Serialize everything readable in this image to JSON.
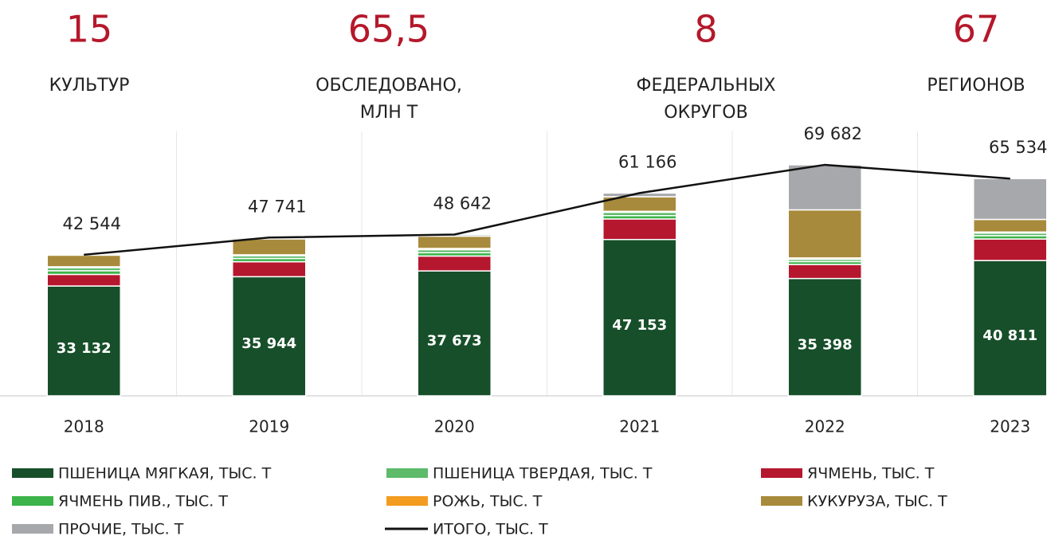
{
  "header": {
    "stats": [
      {
        "value": "15",
        "label": "КУЛЬТУР"
      },
      {
        "value": "65,5",
        "label": "ОБСЛЕДОВАНО, МЛН Т"
      },
      {
        "value": "8",
        "label": "ФЕДЕРАЛЬНЫХ ОКРУГОВ"
      },
      {
        "value": "67",
        "label": "РЕГИОНОВ"
      }
    ]
  },
  "chart_data": {
    "type": "bar",
    "stacked": true,
    "categories": [
      "2018",
      "2019",
      "2020",
      "2021",
      "2022",
      "2023"
    ],
    "ylim": [
      0,
      80000
    ],
    "series": [
      {
        "name": "ПШЕНИЦА МЯГКАЯ, ТЫС. Т",
        "color": "#174f2a",
        "values": [
          33132,
          35944,
          37673,
          47153,
          35398,
          40811
        ],
        "value_labels": [
          "33 132",
          "35 944",
          "37 673",
          "47 153",
          "35 398",
          "40 811"
        ]
      },
      {
        "name": "ПШЕНИЦА ТВЕРДАЯ, ТЫС. Т",
        "color": "#5dbb6a",
        "values": [
          900,
          800,
          900,
          1000,
          700,
          800
        ]
      },
      {
        "name": "ЯЧМЕНЬ, ТЫС. Т",
        "color": "#b5172e",
        "values": [
          3500,
          4500,
          4500,
          6200,
          4200,
          6500
        ]
      },
      {
        "name": "ЯЧМЕНЬ ПИВ., ТЫС. Т",
        "color": "#3cb44a",
        "values": [
          1100,
          1000,
          1000,
          1000,
          900,
          1000
        ]
      },
      {
        "name": "РОЖЬ, ТЫС. Т",
        "color": "#f39c1f",
        "values": [
          300,
          300,
          400,
          300,
          400,
          300
        ]
      },
      {
        "name": "КУКУРУЗА, ТЫС. Т",
        "color": "#a88a3c",
        "values": [
          3500,
          4800,
          3700,
          4400,
          14500,
          3800
        ]
      },
      {
        "name": "ПРОЧИЕ, ТЫС. Т",
        "color": "#a6a8ab",
        "values": [
          112,
          397,
          469,
          1113,
          13584,
          12323
        ]
      },
      {
        "name": "ИТОГО, ТЫС. Т",
        "color": "#111111",
        "type": "line",
        "values": [
          42544,
          47741,
          48642,
          61166,
          69682,
          65534
        ],
        "value_labels": [
          "42 544",
          "47 741",
          "48 642",
          "61 166",
          "69 682",
          "65 534"
        ]
      }
    ]
  }
}
